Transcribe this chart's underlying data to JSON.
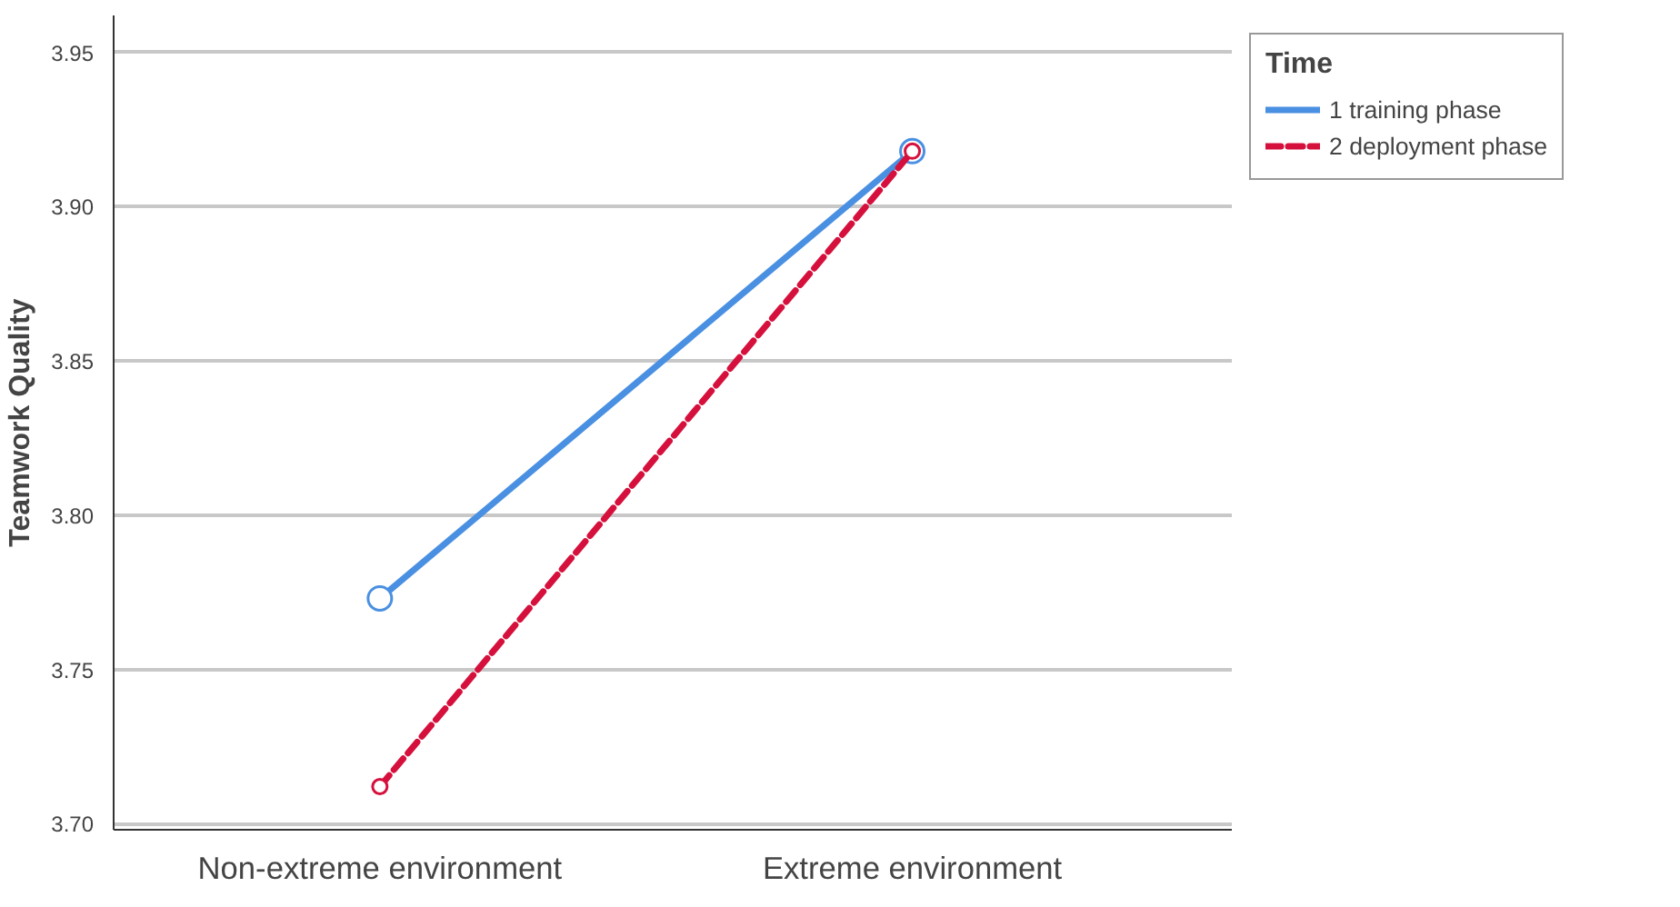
{
  "chart_data": {
    "type": "line",
    "ylabel": "Teamwork Quality",
    "legend_title": "Time",
    "categories": [
      "Non-extreme environment",
      "Extreme environment"
    ],
    "series": [
      {
        "name": "1 training phase",
        "color": "#4a90e2",
        "values": [
          3.773,
          3.918
        ],
        "line_style": "solid"
      },
      {
        "name": "2 deployment phase",
        "color": "#d6103c",
        "values": [
          3.712,
          3.918
        ],
        "line_style": "dashed"
      }
    ],
    "ylim": [
      3.698,
      3.962
    ],
    "yticks": [
      {
        "value": 3.7,
        "label": "3.70"
      },
      {
        "value": 3.75,
        "label": "3.75"
      },
      {
        "value": 3.8,
        "label": "3.80"
      },
      {
        "value": 3.85,
        "label": "3.85"
      },
      {
        "value": 3.9,
        "label": "3.90"
      },
      {
        "value": 3.95,
        "label": "3.95"
      }
    ],
    "grid": "y",
    "legend": "top right",
    "marker": "circle"
  }
}
